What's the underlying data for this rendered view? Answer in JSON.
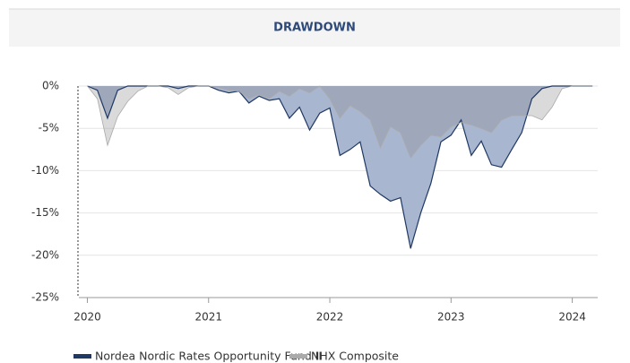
{
  "chart_data": {
    "type": "area",
    "title": "DRAWDOWN",
    "x": [
      2020,
      2020.0833,
      2020.1667,
      2020.25,
      2020.3333,
      2020.4167,
      2020.5,
      2020.5833,
      2020.6667,
      2020.75,
      2020.8333,
      2020.9167,
      2021,
      2021.0833,
      2021.1667,
      2021.25,
      2021.3333,
      2021.4167,
      2021.5,
      2021.5833,
      2021.6667,
      2021.75,
      2021.8333,
      2021.9167,
      2022,
      2022.0833,
      2022.1667,
      2022.25,
      2022.3333,
      2022.4167,
      2022.5,
      2022.5833,
      2022.6667,
      2022.75,
      2022.8333,
      2022.9167,
      2023,
      2023.0833,
      2023.1667,
      2023.25,
      2023.3333,
      2023.4167,
      2023.5,
      2023.5833,
      2023.6667,
      2023.75,
      2023.8333,
      2023.9167,
      2024,
      2024.0833,
      2024.1667
    ],
    "series": [
      {
        "name": "Nordea Nordic Rates Opportunity Fund II",
        "color": "#1f3864",
        "fill": "#a9b6d0",
        "values": [
          0,
          -0.5,
          -3.8,
          -0.5,
          0,
          0,
          0,
          0,
          0,
          -0.3,
          0,
          0,
          0,
          -0.5,
          -0.8,
          -0.6,
          -2.0,
          -1.2,
          -1.7,
          -1.5,
          -3.8,
          -2.5,
          -5.2,
          -3.2,
          -2.6,
          -8.2,
          -7.5,
          -6.6,
          -11.8,
          -12.8,
          -13.6,
          -13.2,
          -19.2,
          -15.0,
          -11.5,
          -6.6,
          -5.8,
          -4.0,
          -8.2,
          -6.5,
          -9.3,
          -9.6,
          -7.5,
          -5.5,
          -1.5,
          -0.3,
          0,
          0,
          0,
          0,
          0
        ]
      },
      {
        "name": "NHX Composite",
        "color": "#aaaaaa",
        "fill": "rgba(140,140,140,0.32)",
        "values": [
          0,
          -1.5,
          -7.0,
          -3.6,
          -1.8,
          -0.6,
          0,
          0,
          -0.2,
          -1.0,
          -0.2,
          0,
          0,
          -0.2,
          -0.5,
          -0.6,
          -1.5,
          -1.0,
          -1.5,
          -0.6,
          -1.2,
          -0.3,
          -0.8,
          0,
          -1.5,
          -3.8,
          -2.3,
          -3.0,
          -4.0,
          -7.3,
          -4.8,
          -5.5,
          -8.5,
          -7.0,
          -5.8,
          -6.0,
          -4.8,
          -4.3,
          -4.6,
          -5.0,
          -5.5,
          -4.0,
          -3.5,
          -3.5,
          -3.5,
          -4.0,
          -2.5,
          -0.3,
          0,
          0,
          0
        ]
      }
    ],
    "xlim": [
      2019.93,
      2024.21
    ],
    "xticks": [
      2020,
      2021,
      2022,
      2023,
      2024
    ],
    "ylim": [
      -25,
      0
    ],
    "yticks": [
      {
        "value": 0,
        "label": "0%"
      },
      {
        "value": -5,
        "label": "-5%"
      },
      {
        "value": -10,
        "label": "-10%"
      },
      {
        "value": -15,
        "label": "-15%"
      },
      {
        "value": -20,
        "label": "-20%"
      },
      {
        "value": -25,
        "label": "-25%"
      }
    ],
    "grid": true,
    "legend": "bottom"
  }
}
